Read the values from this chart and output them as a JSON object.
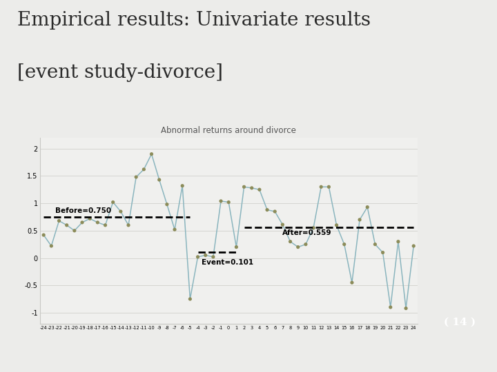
{
  "title": "Abnormal returns around divorce",
  "slide_title_line1": "Empirical results: Univariate results",
  "slide_title_line2": "[event study-divorce]",
  "x_labels": [
    "-24",
    "-23",
    "-22",
    "-21",
    "-20",
    "-19",
    "-18",
    "-17",
    "-16",
    "-15",
    "-14",
    "-13",
    "-12",
    "-11",
    "-10",
    "-9",
    "-8",
    "-7",
    "-6",
    "-5",
    "-4",
    "-3",
    "-2",
    "-1",
    "0",
    "1",
    "2",
    "3",
    "4",
    "5",
    "6",
    "7",
    "8",
    "9",
    "10",
    "11",
    "12",
    "13",
    "14",
    "15",
    "16",
    "17",
    "18",
    "19",
    "20",
    "21",
    "22",
    "23",
    "24"
  ],
  "y_values": [
    0.42,
    0.22,
    0.68,
    0.6,
    0.5,
    0.65,
    0.72,
    0.65,
    0.6,
    1.02,
    0.85,
    0.6,
    1.48,
    1.62,
    1.9,
    1.43,
    0.98,
    0.52,
    1.32,
    -0.75,
    0.02,
    0.05,
    0.02,
    1.04,
    1.02,
    0.2,
    1.3,
    1.28,
    1.25,
    0.88,
    0.85,
    0.61,
    0.3,
    0.2,
    0.25,
    0.55,
    1.3,
    1.3,
    0.6,
    0.25,
    -0.45,
    0.7,
    0.93,
    0.25,
    0.1,
    -0.9,
    0.3,
    -0.92,
    0.22
  ],
  "before_value": 0.75,
  "after_value": 0.559,
  "event_value": 0.101,
  "line_color": "#8ab5be",
  "marker_color": "#8c8c5a",
  "slide_bg": "#ececea",
  "chart_bg": "#f0f0ee",
  "sidebar_color": "#6e6451",
  "pagebox_color": "#b0a882",
  "pagedark_color": "#5e5540",
  "ylim": [
    -1.2,
    2.2
  ],
  "yticks": [
    -1.0,
    -0.5,
    0.0,
    0.5,
    1.0,
    1.5,
    2.0
  ]
}
